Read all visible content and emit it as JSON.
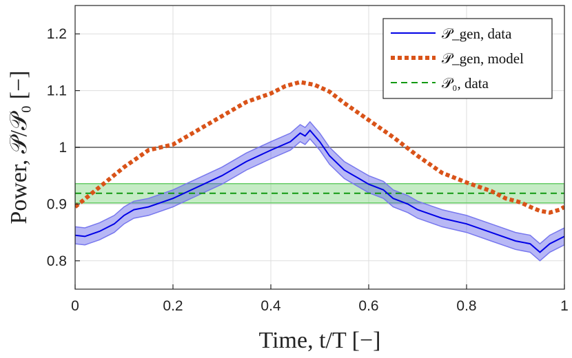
{
  "chart_data": {
    "type": "line",
    "xlabel": "Time, t/T [−]",
    "ylabel": "Power, 𝒫/𝒫₀ [−]",
    "xlim": [
      0,
      1
    ],
    "ylim": [
      0.75,
      1.25
    ],
    "grid": true,
    "x_ticks": [
      {
        "value": 0,
        "label": "0"
      },
      {
        "value": 0.2,
        "label": "0.2"
      },
      {
        "value": 0.4,
        "label": "0.4"
      },
      {
        "value": 0.6,
        "label": "0.6"
      },
      {
        "value": 0.8,
        "label": "0.8"
      },
      {
        "value": 1,
        "label": "1"
      }
    ],
    "y_ticks": [
      {
        "value": 0.8,
        "label": "0.8"
      },
      {
        "value": 0.9,
        "label": "0.9"
      },
      {
        "value": 1.0,
        "label": "1"
      },
      {
        "value": 1.1,
        "label": "1.1"
      },
      {
        "value": 1.2,
        "label": "1.2"
      }
    ],
    "reference_line": {
      "y": 1.0,
      "color": "#808080"
    },
    "legend": {
      "placement": "top-right",
      "entries": [
        {
          "series": "pgen_data",
          "label": "𝒫_gen, data"
        },
        {
          "series": "pgen_model",
          "label": "𝒫_gen, model"
        },
        {
          "series": "p0_data",
          "label": "𝒫₀, data"
        }
      ]
    },
    "series": [
      {
        "name": "pgen_data",
        "label": "𝒫_gen, data",
        "color": "#0000e6",
        "band_color": "#5555e6",
        "style": "solid",
        "x": [
          0,
          0.02,
          0.05,
          0.08,
          0.1,
          0.12,
          0.15,
          0.2,
          0.25,
          0.3,
          0.35,
          0.4,
          0.44,
          0.46,
          0.47,
          0.48,
          0.5,
          0.52,
          0.55,
          0.58,
          0.6,
          0.63,
          0.65,
          0.68,
          0.7,
          0.75,
          0.8,
          0.85,
          0.9,
          0.93,
          0.95,
          0.97,
          1.0
        ],
        "y": [
          0.845,
          0.843,
          0.852,
          0.865,
          0.88,
          0.89,
          0.895,
          0.91,
          0.93,
          0.95,
          0.975,
          0.995,
          1.01,
          1.025,
          1.02,
          1.03,
          1.01,
          0.985,
          0.96,
          0.945,
          0.935,
          0.925,
          0.91,
          0.9,
          0.89,
          0.875,
          0.865,
          0.85,
          0.835,
          0.83,
          0.815,
          0.83,
          0.843
        ],
        "band_half_width": 0.015
      },
      {
        "name": "pgen_model",
        "label": "𝒫_gen, model",
        "color": "#d95319",
        "style": "dotted",
        "x": [
          0,
          0.05,
          0.1,
          0.15,
          0.2,
          0.25,
          0.3,
          0.35,
          0.4,
          0.43,
          0.46,
          0.49,
          0.52,
          0.55,
          0.6,
          0.65,
          0.7,
          0.75,
          0.8,
          0.85,
          0.88,
          0.91,
          0.93,
          0.95,
          0.97,
          0.99,
          1.0
        ],
        "y": [
          0.895,
          0.93,
          0.965,
          0.995,
          1.005,
          1.03,
          1.055,
          1.08,
          1.095,
          1.108,
          1.115,
          1.11,
          1.098,
          1.078,
          1.048,
          1.018,
          0.985,
          0.955,
          0.938,
          0.923,
          0.91,
          0.903,
          0.895,
          0.888,
          0.885,
          0.89,
          0.895
        ]
      },
      {
        "name": "p0_data",
        "label": "𝒫₀, data",
        "color": "#119911",
        "band_color": "#66cc66",
        "style": "dashed",
        "y_value": 0.919,
        "band": [
          0.902,
          0.936
        ]
      }
    ]
  }
}
